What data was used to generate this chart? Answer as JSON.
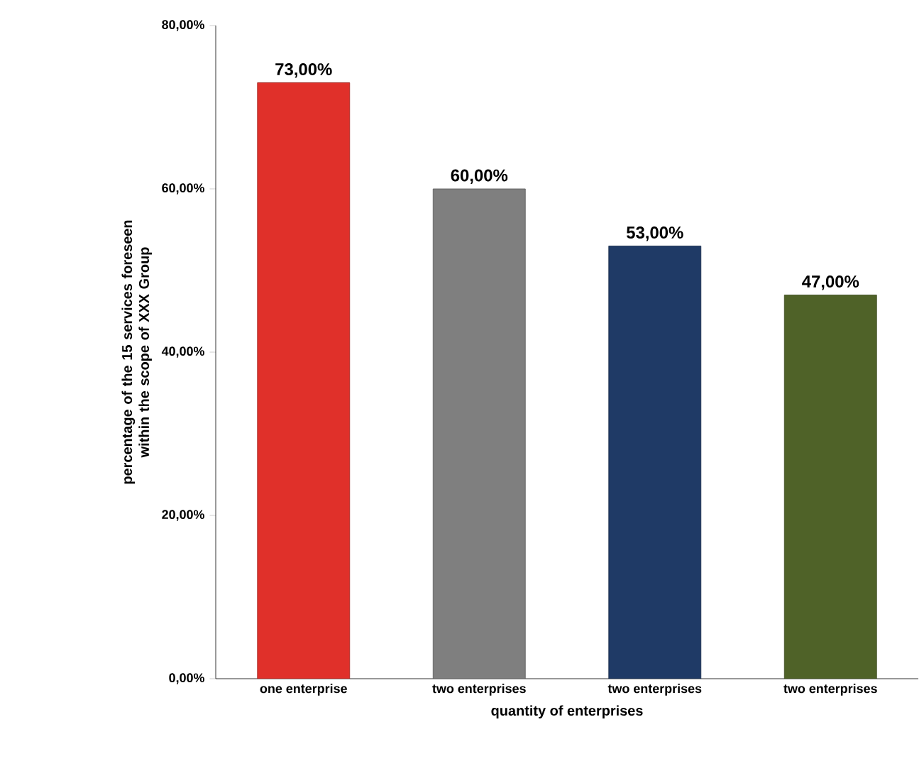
{
  "chart_data": {
    "type": "bar",
    "xlabel": "quantity of enterprises",
    "ylabel": "percentage of the 15 services foreseen within the scope of XXX  Group",
    "categories": [
      "one enterprise",
      "two enterprises",
      "two enterprises",
      "two enterprises"
    ],
    "values": [
      73,
      60,
      53,
      47
    ],
    "colors": [
      "#e0302a",
      "#7f7f7f",
      "#1f3a66",
      "#4f6228"
    ],
    "value_labels": [
      "73,00%",
      "60,00%",
      "53,00%",
      "47,00%"
    ],
    "ylim": [
      0,
      80
    ],
    "yticks": [
      {
        "value": 0,
        "label": "0,00%"
      },
      {
        "value": 20,
        "label": "20,00%"
      },
      {
        "value": 40,
        "label": "40,00%"
      },
      {
        "value": 60,
        "label": "60,00%"
      },
      {
        "value": 80,
        "label": "80,00%"
      }
    ],
    "grid": false
  }
}
